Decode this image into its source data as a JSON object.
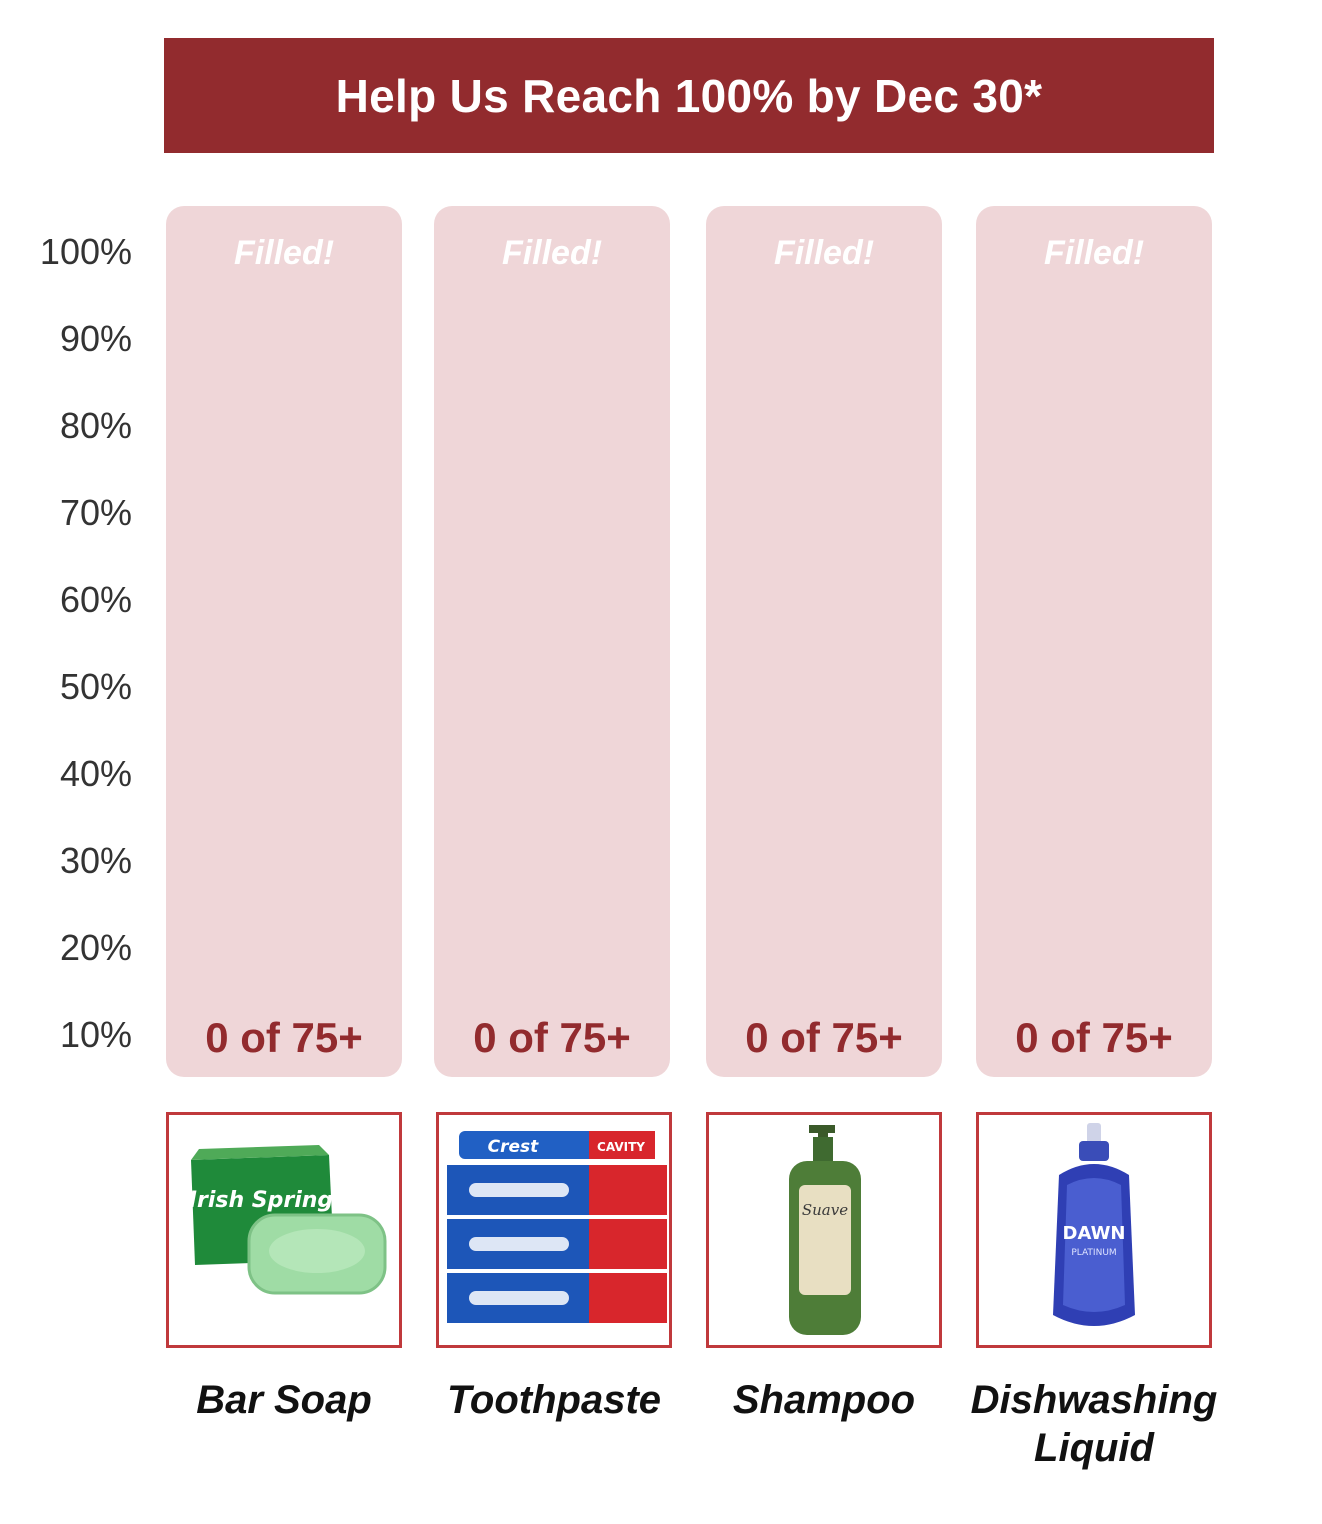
{
  "banner": {
    "title": "Help Us Reach 100% by Dec 30*"
  },
  "chart_data": {
    "type": "bar",
    "categories": [
      "Bar Soap",
      "Toothpaste",
      "Shampoo",
      "Dishwashing Liquid"
    ],
    "values": [
      0,
      0,
      0,
      0
    ],
    "unit": "%",
    "ylim": [
      0,
      100
    ],
    "y_ticks": [
      "100%",
      "90%",
      "80%",
      "70%",
      "60%",
      "50%",
      "40%",
      "30%",
      "20%",
      "10%"
    ],
    "columns": [
      {
        "name": "Bar Soap",
        "top_label": "Filled!",
        "count_label": "0 of 75+",
        "image": "irish-spring-bar-soap"
      },
      {
        "name": "Toothpaste",
        "top_label": "Filled!",
        "count_label": "0 of 75+",
        "image": "crest-toothpaste-boxes"
      },
      {
        "name": "Shampoo",
        "top_label": "Filled!",
        "count_label": "0 of 75+",
        "image": "suave-shampoo-bottle"
      },
      {
        "name": "Dishwashing Liquid",
        "top_label": "Filled!",
        "count_label": "0 of 75+",
        "image": "dawn-dish-soap-bottle"
      }
    ],
    "colors": {
      "accent": "#922b2e",
      "column_bg": "#efd6d8",
      "frame": "#c0393c"
    }
  },
  "product_text": {
    "soap_brand": "Irish Spring",
    "toothpaste_brand": "Crest",
    "toothpaste_variant": "CAVITY",
    "shampoo_brand": "Suave",
    "dish_brand": "DAWN",
    "dish_variant": "PLATINUM"
  }
}
